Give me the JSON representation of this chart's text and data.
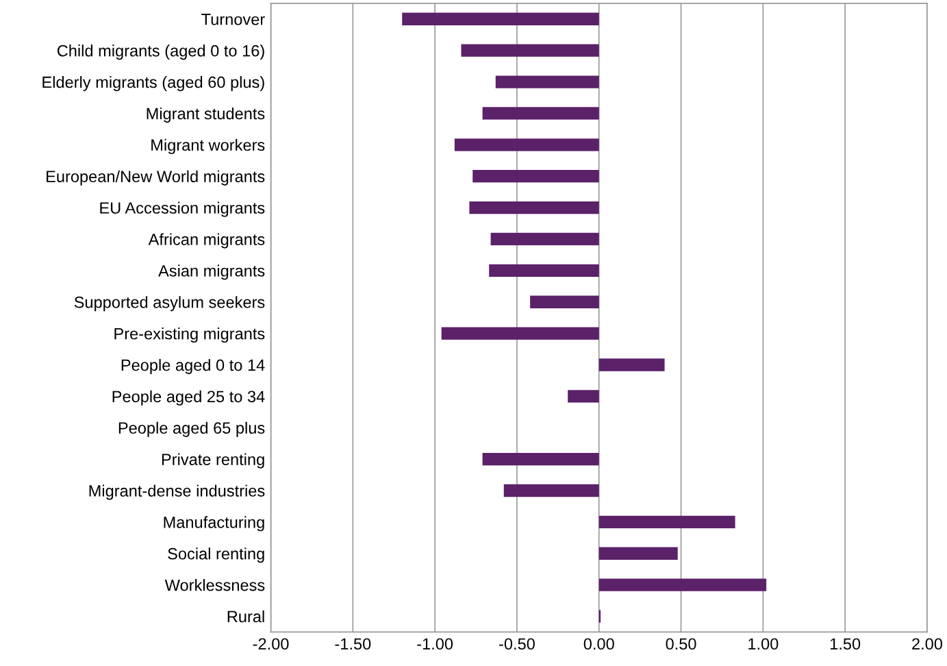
{
  "chart_data": {
    "type": "bar",
    "orientation": "horizontal",
    "categories": [
      "Turnover",
      "Child migrants (aged 0 to 16)",
      "Elderly migrants (aged 60 plus)",
      "Migrant students",
      "Migrant workers",
      "European/New World migrants",
      "EU Accession migrants",
      "African migrants",
      "Asian migrants",
      "Supported asylum seekers",
      "Pre-existing migrants",
      "People aged 0 to 14",
      "People aged 25 to 34",
      "People aged 65 plus",
      "Private renting",
      "Migrant-dense industries",
      "Manufacturing",
      "Social renting",
      "Worklessness",
      "Rural"
    ],
    "values": [
      -1.2,
      -0.84,
      -0.63,
      -0.71,
      -0.88,
      -0.77,
      -0.79,
      -0.66,
      -0.67,
      -0.42,
      -0.96,
      0.4,
      -0.19,
      0.0,
      -0.71,
      -0.58,
      0.83,
      0.48,
      1.02,
      0.01
    ],
    "color": "#5b2169",
    "xlim": [
      -2,
      2
    ],
    "xticks": [
      {
        "value": -2,
        "label": "-2.00"
      },
      {
        "value": -1.5,
        "label": "-1.50"
      },
      {
        "value": -1,
        "label": "-1.00"
      },
      {
        "value": -0.5,
        "label": "-0.50"
      },
      {
        "value": 0,
        "label": "0.00"
      },
      {
        "value": 0.5,
        "label": "0.50"
      },
      {
        "value": 1,
        "label": "1.00"
      },
      {
        "value": 1.5,
        "label": "1.50"
      },
      {
        "value": 2,
        "label": "2.00"
      }
    ],
    "grid": "x"
  }
}
